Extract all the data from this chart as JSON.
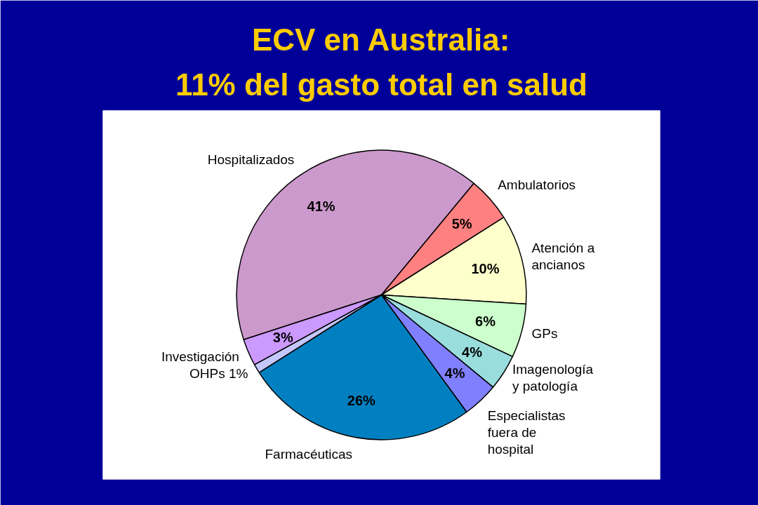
{
  "chart_data": {
    "type": "pie",
    "title": "ECV en Australia:",
    "subtitle": "11% del gasto total en salud",
    "categories": [
      "Hospitalizados",
      "Ambulatorios",
      "Atención a ancianos",
      "GPs",
      "Imagenología y patología",
      "Especialistas fuera de hospital",
      "Farmacéuticas",
      "OHPs",
      "Investigación"
    ],
    "values": [
      41,
      5,
      10,
      6,
      4,
      4,
      26,
      1,
      3
    ],
    "colors": [
      "#cc99cc",
      "#ff8080",
      "#ffffcc",
      "#ccffcc",
      "#99dddd",
      "#8080ff",
      "#0080c0",
      "#c4c8ff",
      "#cc99ff"
    ],
    "value_labels": [
      "41%",
      "5%",
      "10%",
      "6%",
      "4%",
      "4%",
      "26%",
      "1%",
      "3%"
    ]
  }
}
